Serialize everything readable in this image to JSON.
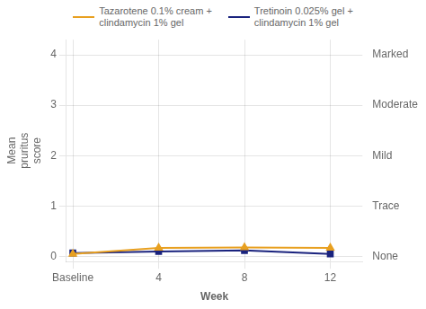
{
  "chart_data": {
    "type": "line",
    "xlabel": "Week",
    "ylabel": "Mean\npruritus\nscore",
    "x": [
      0,
      4,
      8,
      12
    ],
    "series": [
      {
        "name": "Tazarotene 0.1% cream +\nclindamycin 1% gel",
        "color": "#E8A020",
        "marker": "triangle",
        "values": [
          0.05,
          0.17,
          0.18,
          0.17
        ]
      },
      {
        "name": "Tretinoin 0.025% gel +\nclindamycin 1% gel",
        "color": "#1a237e",
        "marker": "square",
        "values": [
          0.07,
          0.1,
          0.12,
          0.05
        ]
      }
    ],
    "xlim": [
      -0.3,
      13.5
    ],
    "xticks": [
      {
        "value": 0,
        "label": "Baseline"
      },
      4,
      8,
      12
    ],
    "ylim": [
      -0.1,
      4.3
    ],
    "yticks": [
      0,
      1,
      2,
      3,
      4
    ],
    "annotations": [
      {
        "y": 0,
        "text": "None"
      },
      {
        "y": 1,
        "text": "Trace"
      },
      {
        "y": 2,
        "text": "Mild"
      },
      {
        "y": 3,
        "text": "Moderate"
      },
      {
        "y": 4,
        "text": "Marked"
      }
    ],
    "grid": true,
    "legend": "top"
  }
}
